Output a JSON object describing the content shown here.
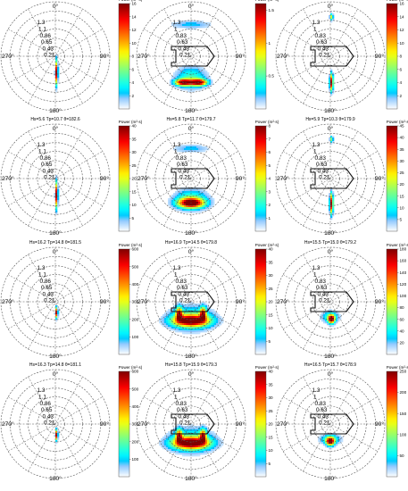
{
  "chart_data": [
    {
      "type": "heatmap",
      "title": "Hs=3.6 Tp=10.1 θ=181.6",
      "colorbar_label": "Power (m²·s)",
      "cmax": 16,
      "ticks": [
        2,
        4,
        6,
        8,
        10,
        12,
        14,
        16
      ],
      "hull": false,
      "radial_labels": [
        "1.3",
        "1.1",
        "0.86",
        "0.65",
        "0.43",
        "0.21"
      ],
      "angle_labels": {
        "top": "0°",
        "left": "270°",
        "right": "90°",
        "bottom": "180°"
      },
      "peaks": [
        {
          "x": 0.02,
          "y": -0.3,
          "sx": 0.015,
          "sy": 0.14,
          "a": 1.0
        }
      ]
    },
    {
      "type": "heatmap",
      "title": "Hs=3.2 Tp=11.2 θ=179.7",
      "colorbar_label": "Power (m²·s)",
      "cmax": 1.6,
      "ticks": [
        0.5,
        1,
        1.5
      ],
      "hull": true,
      "radial_labels": [
        "1.3",
        "1",
        "0.83",
        "0.63",
        "0.43",
        "0.21"
      ],
      "angle_labels": {
        "top": "0°",
        "left": "270°",
        "right": "90°",
        "bottom": "180°"
      },
      "peaks": [
        {
          "x": -0.14,
          "y": -0.48,
          "sx": 0.1,
          "sy": 0.04,
          "a": 1.0
        },
        {
          "x": 0.14,
          "y": -0.48,
          "sx": 0.1,
          "sy": 0.04,
          "a": 1.0
        },
        {
          "x": 0.0,
          "y": -0.4,
          "sx": 0.18,
          "sy": 0.13,
          "a": 0.3
        },
        {
          "x": 0.0,
          "y": 0.58,
          "sx": 0.25,
          "sy": 0.05,
          "a": 0.15
        }
      ]
    },
    {
      "type": "heatmap",
      "title": "Hs=3.5 Tp=9.6 θ=179.9",
      "colorbar_label": "Power (m²·s)",
      "cmax": 16,
      "ticks": [
        2,
        4,
        6,
        8,
        10,
        12,
        14,
        16
      ],
      "hull": true,
      "radial_labels": [
        "1.3",
        "1",
        "0.83",
        "0.63",
        "0.43",
        "0.21"
      ],
      "angle_labels": {
        "top": "0°",
        "left": "270°",
        "right": "90°",
        "bottom": "180°"
      },
      "peaks": [
        {
          "x": 0.02,
          "y": -0.48,
          "sx": 0.02,
          "sy": 0.1,
          "a": 1.0
        },
        {
          "x": 0.02,
          "y": 0.72,
          "sx": 0.02,
          "sy": 0.04,
          "a": 0.5
        }
      ]
    },
    {
      "type": "heatmap",
      "title": "Hs=5.6 Tp=10.7 θ=182.6",
      "colorbar_label": "Power (m²·s)",
      "cmax": 40,
      "ticks": [
        5,
        10,
        15,
        20,
        25,
        30,
        35,
        40
      ],
      "hull": false,
      "radial_labels": [
        "1.3",
        "1.1",
        "0.86",
        "0.65",
        "0.43",
        "0.21"
      ],
      "angle_labels": {
        "top": "0°",
        "left": "270°",
        "right": "90°",
        "bottom": "180°"
      },
      "peaks": [
        {
          "x": 0.02,
          "y": -0.3,
          "sx": 0.015,
          "sy": 0.15,
          "a": 1.0
        }
      ]
    },
    {
      "type": "heatmap",
      "title": "Hs=5.8 Tp=11.7 θ=179.7",
      "colorbar_label": "Power (m²·s)",
      "cmax": 8,
      "ticks": [
        1,
        2,
        3,
        4,
        5,
        6,
        7,
        8
      ],
      "hull": true,
      "radial_labels": [
        "1.3",
        "1",
        "0.83",
        "0.63",
        "0.43",
        "0.21"
      ],
      "angle_labels": {
        "top": "0°",
        "left": "270°",
        "right": "90°",
        "bottom": "180°"
      },
      "peaks": [
        {
          "x": 0.0,
          "y": -0.45,
          "sx": 0.16,
          "sy": 0.06,
          "a": 1.0
        },
        {
          "x": 0.0,
          "y": -0.38,
          "sx": 0.2,
          "sy": 0.12,
          "a": 0.3
        },
        {
          "x": 0.0,
          "y": 0.55,
          "sx": 0.22,
          "sy": 0.05,
          "a": 0.15
        }
      ]
    },
    {
      "type": "heatmap",
      "title": "Hs=5.9 Tp=10.3 θ=179.9",
      "colorbar_label": "Power (m²·s)",
      "cmax": 45,
      "ticks": [
        5,
        10,
        15,
        20,
        25,
        30,
        35,
        40,
        45
      ],
      "hull": true,
      "radial_labels": [
        "1.3",
        "1",
        "0.83",
        "0.63",
        "0.43",
        "0.21"
      ],
      "angle_labels": {
        "top": "0°",
        "left": "270°",
        "right": "90°",
        "bottom": "180°"
      },
      "peaks": [
        {
          "x": 0.02,
          "y": -0.46,
          "sx": 0.02,
          "sy": 0.12,
          "a": 1.0
        },
        {
          "x": 0.02,
          "y": 0.72,
          "sx": 0.02,
          "sy": 0.04,
          "a": 0.4
        }
      ]
    },
    {
      "type": "heatmap",
      "title": "Hs=16.2 Tp=14.8 θ=181.5",
      "colorbar_label": "Power (m²·s)",
      "cmax": 600,
      "ticks": [
        100,
        200,
        300,
        400,
        500,
        600
      ],
      "hull": false,
      "radial_labels": [
        "1.3",
        "1.1",
        "0.86",
        "0.65",
        "0.43",
        "0.21"
      ],
      "angle_labels": {
        "top": "0°",
        "left": "270°",
        "right": "90°",
        "bottom": "180°"
      },
      "peaks": [
        {
          "x": 0.02,
          "y": -0.2,
          "sx": 0.015,
          "sy": 0.06,
          "a": 1.0
        }
      ]
    },
    {
      "type": "heatmap",
      "title": "Hs=16.9 Tp=14.5 θ=179.8",
      "colorbar_label": "Power (m²·s)",
      "cmax": 40,
      "ticks": [
        5,
        10,
        15,
        20,
        25,
        30,
        35,
        40
      ],
      "hull": true,
      "radial_labels": [
        "1.3",
        "1",
        "0.83",
        "0.63",
        "0.43",
        "0.21"
      ],
      "angle_labels": {
        "top": "0°",
        "left": "270°",
        "right": "90°",
        "bottom": "180°"
      },
      "peaks": [
        {
          "x": 0.0,
          "y": -0.35,
          "sx": 0.22,
          "sy": 0.07,
          "a": 1.0
        },
        {
          "x": -0.22,
          "y": -0.22,
          "sx": 0.04,
          "sy": 0.08,
          "a": 0.8
        },
        {
          "x": 0.22,
          "y": -0.22,
          "sx": 0.04,
          "sy": 0.08,
          "a": 0.8
        },
        {
          "x": 0.0,
          "y": -0.3,
          "sx": 0.26,
          "sy": 0.15,
          "a": 0.3
        }
      ]
    },
    {
      "type": "heatmap",
      "title": "Hs=15.5 Tp=15.0 θ=179.2",
      "colorbar_label": "Power (m²·s)",
      "cmax": 180,
      "ticks": [
        20,
        40,
        60,
        80,
        100,
        120,
        140,
        160,
        180
      ],
      "hull": true,
      "radial_labels": [
        "1.3",
        "1",
        "0.83",
        "0.63",
        "0.43",
        "0.21"
      ],
      "angle_labels": {
        "top": "0°",
        "left": "270°",
        "right": "90°",
        "bottom": "180°"
      },
      "peaks": [
        {
          "x": 0.02,
          "y": -0.32,
          "sx": 0.04,
          "sy": 0.05,
          "a": 1.0
        },
        {
          "x": 0.0,
          "y": -0.28,
          "sx": 0.1,
          "sy": 0.07,
          "a": 0.3
        }
      ]
    },
    {
      "type": "heatmap",
      "title": "Hs=16.3 Tp=14.8 θ=181.1",
      "colorbar_label": "Power (m²·s)",
      "cmax": 600,
      "ticks": [
        100,
        200,
        300,
        400,
        500,
        600
      ],
      "hull": false,
      "radial_labels": [
        "1.3",
        "1.1",
        "0.86",
        "0.65",
        "0.43",
        "0.21"
      ],
      "angle_labels": {
        "top": "0°",
        "left": "270°",
        "right": "90°",
        "bottom": "180°"
      },
      "peaks": [
        {
          "x": 0.02,
          "y": -0.2,
          "sx": 0.015,
          "sy": 0.06,
          "a": 1.0
        }
      ]
    },
    {
      "type": "heatmap",
      "title": "Hs=15.8 Tp=15.9 θ=179.3",
      "colorbar_label": "Power (m²·s)",
      "cmax": 40,
      "ticks": [
        5,
        10,
        15,
        20,
        25,
        30,
        35,
        40
      ],
      "hull": true,
      "radial_labels": [
        "1.3",
        "1",
        "0.83",
        "0.63",
        "0.43",
        "0.21"
      ],
      "angle_labels": {
        "top": "0°",
        "left": "270°",
        "right": "90°",
        "bottom": "180°"
      },
      "peaks": [
        {
          "x": 0.0,
          "y": -0.35,
          "sx": 0.22,
          "sy": 0.07,
          "a": 1.0
        },
        {
          "x": -0.22,
          "y": -0.22,
          "sx": 0.04,
          "sy": 0.08,
          "a": 0.8
        },
        {
          "x": 0.22,
          "y": -0.22,
          "sx": 0.04,
          "sy": 0.08,
          "a": 0.8
        },
        {
          "x": 0.0,
          "y": -0.3,
          "sx": 0.26,
          "sy": 0.15,
          "a": 0.3
        }
      ]
    },
    {
      "type": "heatmap",
      "title": "Hs=16.5 Tp=15.7 θ=178.9",
      "colorbar_label": "Power (m²·s)",
      "cmax": 250,
      "ticks": [
        50,
        100,
        150,
        200,
        250
      ],
      "hull": true,
      "radial_labels": [
        "1.3",
        "1",
        "0.83",
        "0.63",
        "0.43",
        "0.21"
      ],
      "angle_labels": {
        "top": "0°",
        "left": "270°",
        "right": "90°",
        "bottom": "180°"
      },
      "peaks": [
        {
          "x": 0.0,
          "y": -0.32,
          "sx": 0.05,
          "sy": 0.05,
          "a": 1.0
        },
        {
          "x": 0.0,
          "y": -0.28,
          "sx": 0.12,
          "sy": 0.06,
          "a": 0.3
        }
      ]
    }
  ]
}
